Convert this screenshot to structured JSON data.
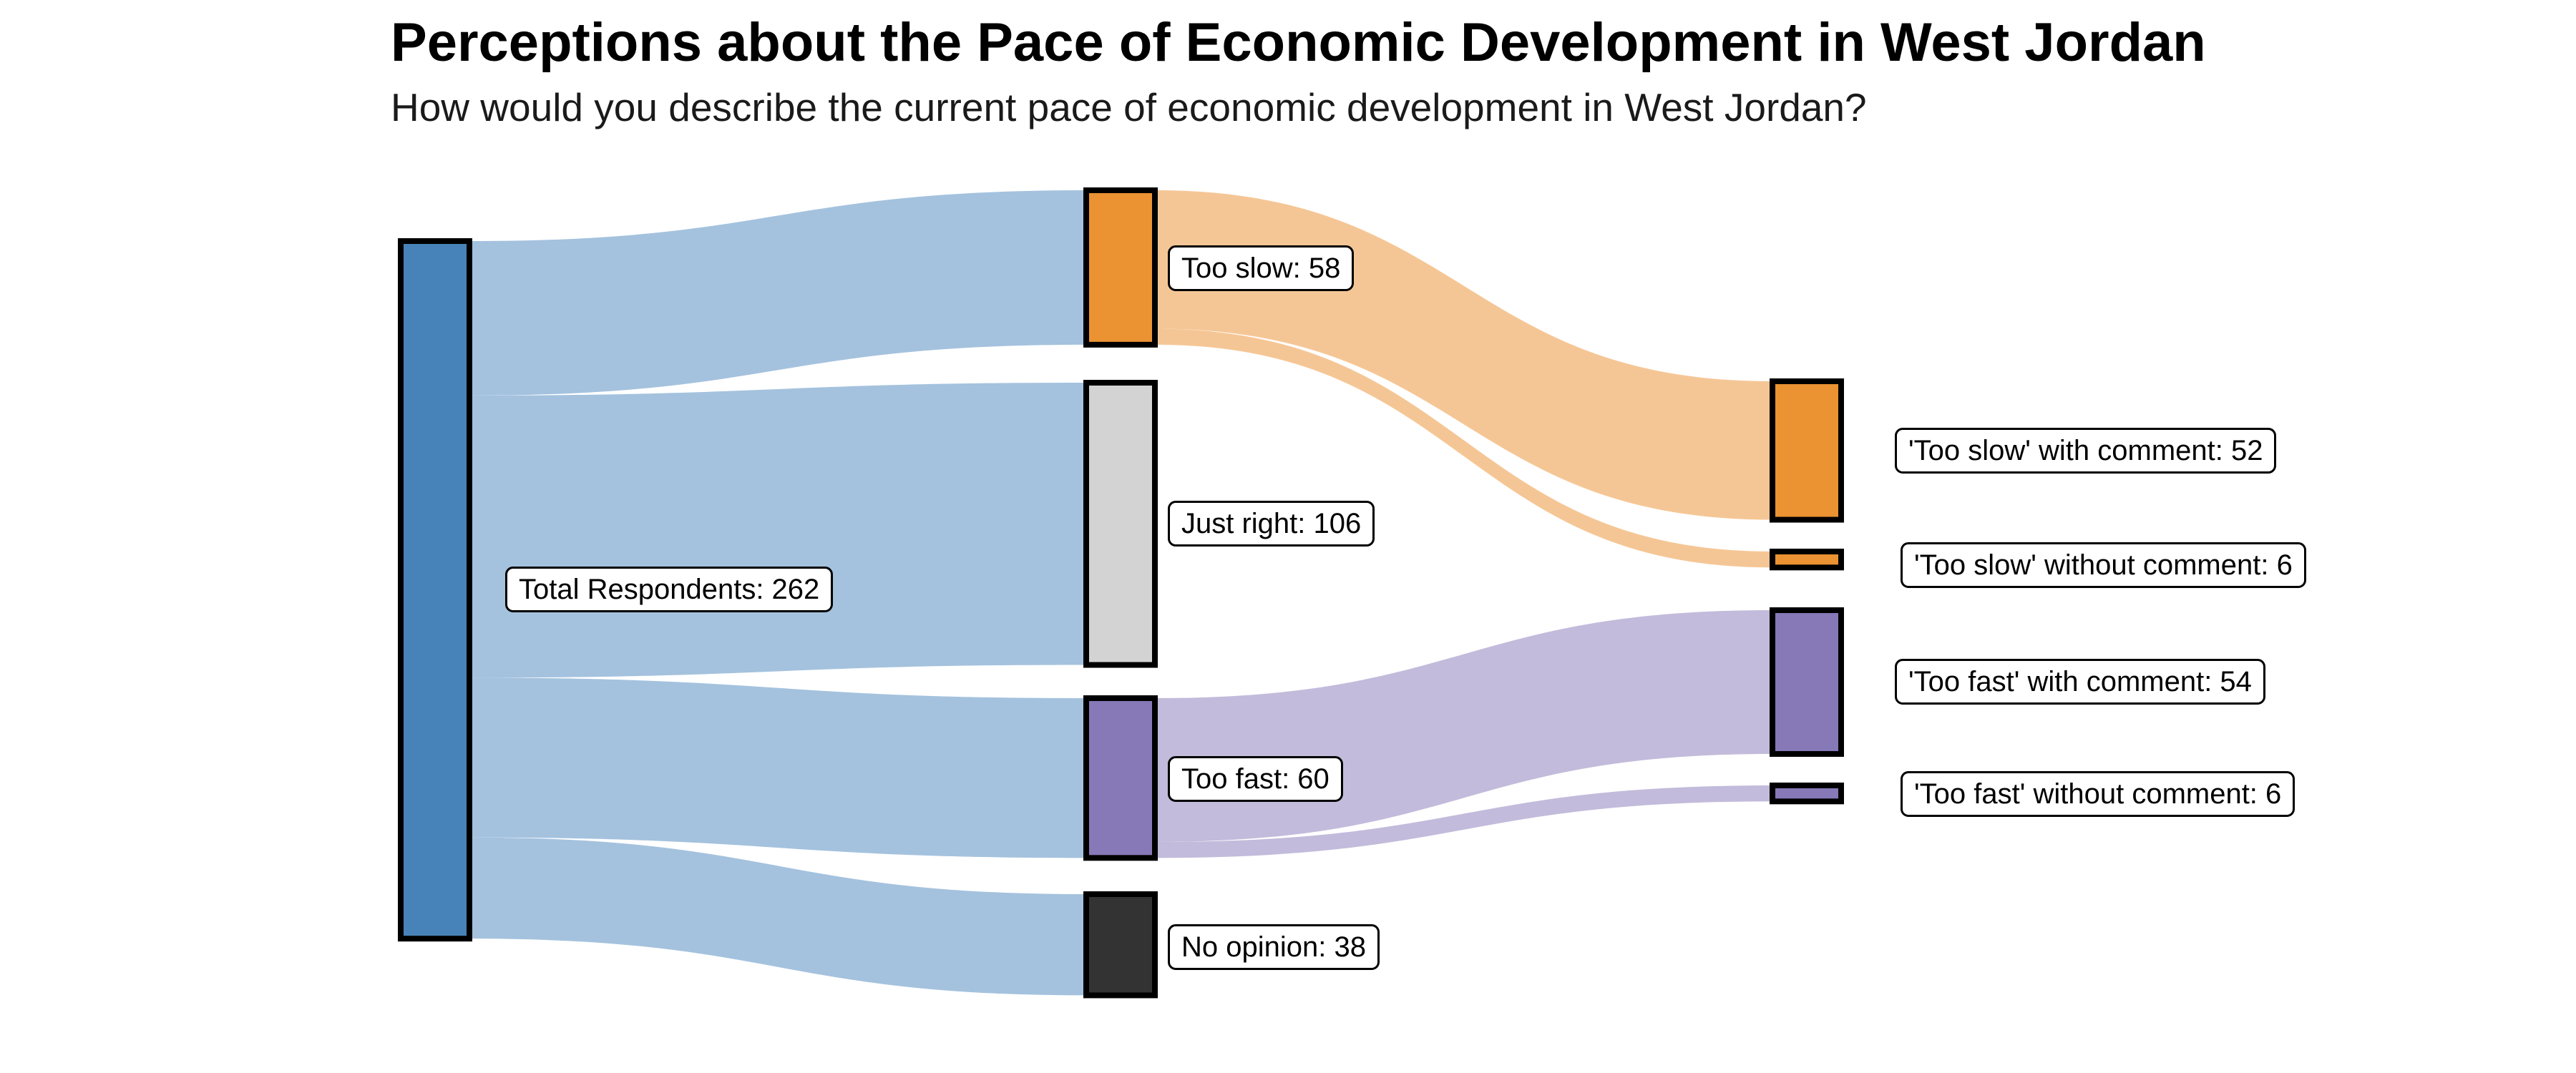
{
  "title": "Perceptions about the Pace of Economic Development in West Jordan",
  "subtitle": "How would you describe the current pace of economic development in West Jordan?",
  "palette": {
    "total_blue": "#4783B8",
    "blue_flow": "#A4C2DE",
    "too_slow_orange": "#EB9232",
    "orange_flow": "#F5C695",
    "just_right_gray": "#D3D3D3",
    "too_fast_purple": "#8778B7",
    "purple_flow": "#C3BBDB",
    "no_opinion_dark": "#333333",
    "node_border": "#000000",
    "label_box_bg": "#FFFFFF",
    "label_box_border": "#000000"
  },
  "chart_data": {
    "type": "sankey",
    "title": "Perceptions about the Pace of Economic Development in West Jordan",
    "subtitle": "How would you describe the current pace of economic development in West Jordan?",
    "total_respondents": 262,
    "nodes": [
      {
        "id": "total",
        "name": "Total Respondents",
        "label": "Total Respondents: 262",
        "value": 262,
        "column": 0,
        "color": "#4783B8"
      },
      {
        "id": "too_slow",
        "name": "Too slow",
        "label": "Too slow: 58",
        "value": 58,
        "column": 1,
        "color": "#EB9232"
      },
      {
        "id": "just_right",
        "name": "Just right",
        "label": "Just right: 106",
        "value": 106,
        "column": 1,
        "color": "#D3D3D3"
      },
      {
        "id": "too_fast",
        "name": "Too fast",
        "label": "Too fast: 60",
        "value": 60,
        "column": 1,
        "color": "#8778B7"
      },
      {
        "id": "no_opinion",
        "name": "No opinion",
        "label": "No opinion: 38",
        "value": 38,
        "column": 1,
        "color": "#333333"
      },
      {
        "id": "ts_with",
        "name": "'Too slow' with comment",
        "label": "'Too slow' with comment: 52",
        "value": 52,
        "column": 2,
        "color": "#EB9232"
      },
      {
        "id": "ts_without",
        "name": "'Too slow' without comment",
        "label": "'Too slow' without comment: 6",
        "value": 6,
        "column": 2,
        "color": "#EB9232"
      },
      {
        "id": "tf_with",
        "name": "'Too fast' with comment",
        "label": "'Too fast' with comment: 54",
        "value": 54,
        "column": 2,
        "color": "#8778B7"
      },
      {
        "id": "tf_without",
        "name": "'Too fast' without comment",
        "label": "'Too fast' without comment: 6",
        "value": 6,
        "column": 2,
        "color": "#8778B7"
      }
    ],
    "links": [
      {
        "source": "total",
        "target": "too_slow",
        "value": 58,
        "color": "#A4C2DE"
      },
      {
        "source": "total",
        "target": "just_right",
        "value": 106,
        "color": "#A4C2DE"
      },
      {
        "source": "total",
        "target": "too_fast",
        "value": 60,
        "color": "#A4C2DE"
      },
      {
        "source": "total",
        "target": "no_opinion",
        "value": 38,
        "color": "#A4C2DE"
      },
      {
        "source": "too_slow",
        "target": "ts_with",
        "value": 52,
        "color": "#F5C695"
      },
      {
        "source": "too_slow",
        "target": "ts_without",
        "value": 6,
        "color": "#F5C695"
      },
      {
        "source": "too_fast",
        "target": "tf_with",
        "value": 54,
        "color": "#C3BBDB"
      },
      {
        "source": "too_fast",
        "target": "tf_without",
        "value": 6,
        "color": "#C3BBDB"
      }
    ]
  }
}
